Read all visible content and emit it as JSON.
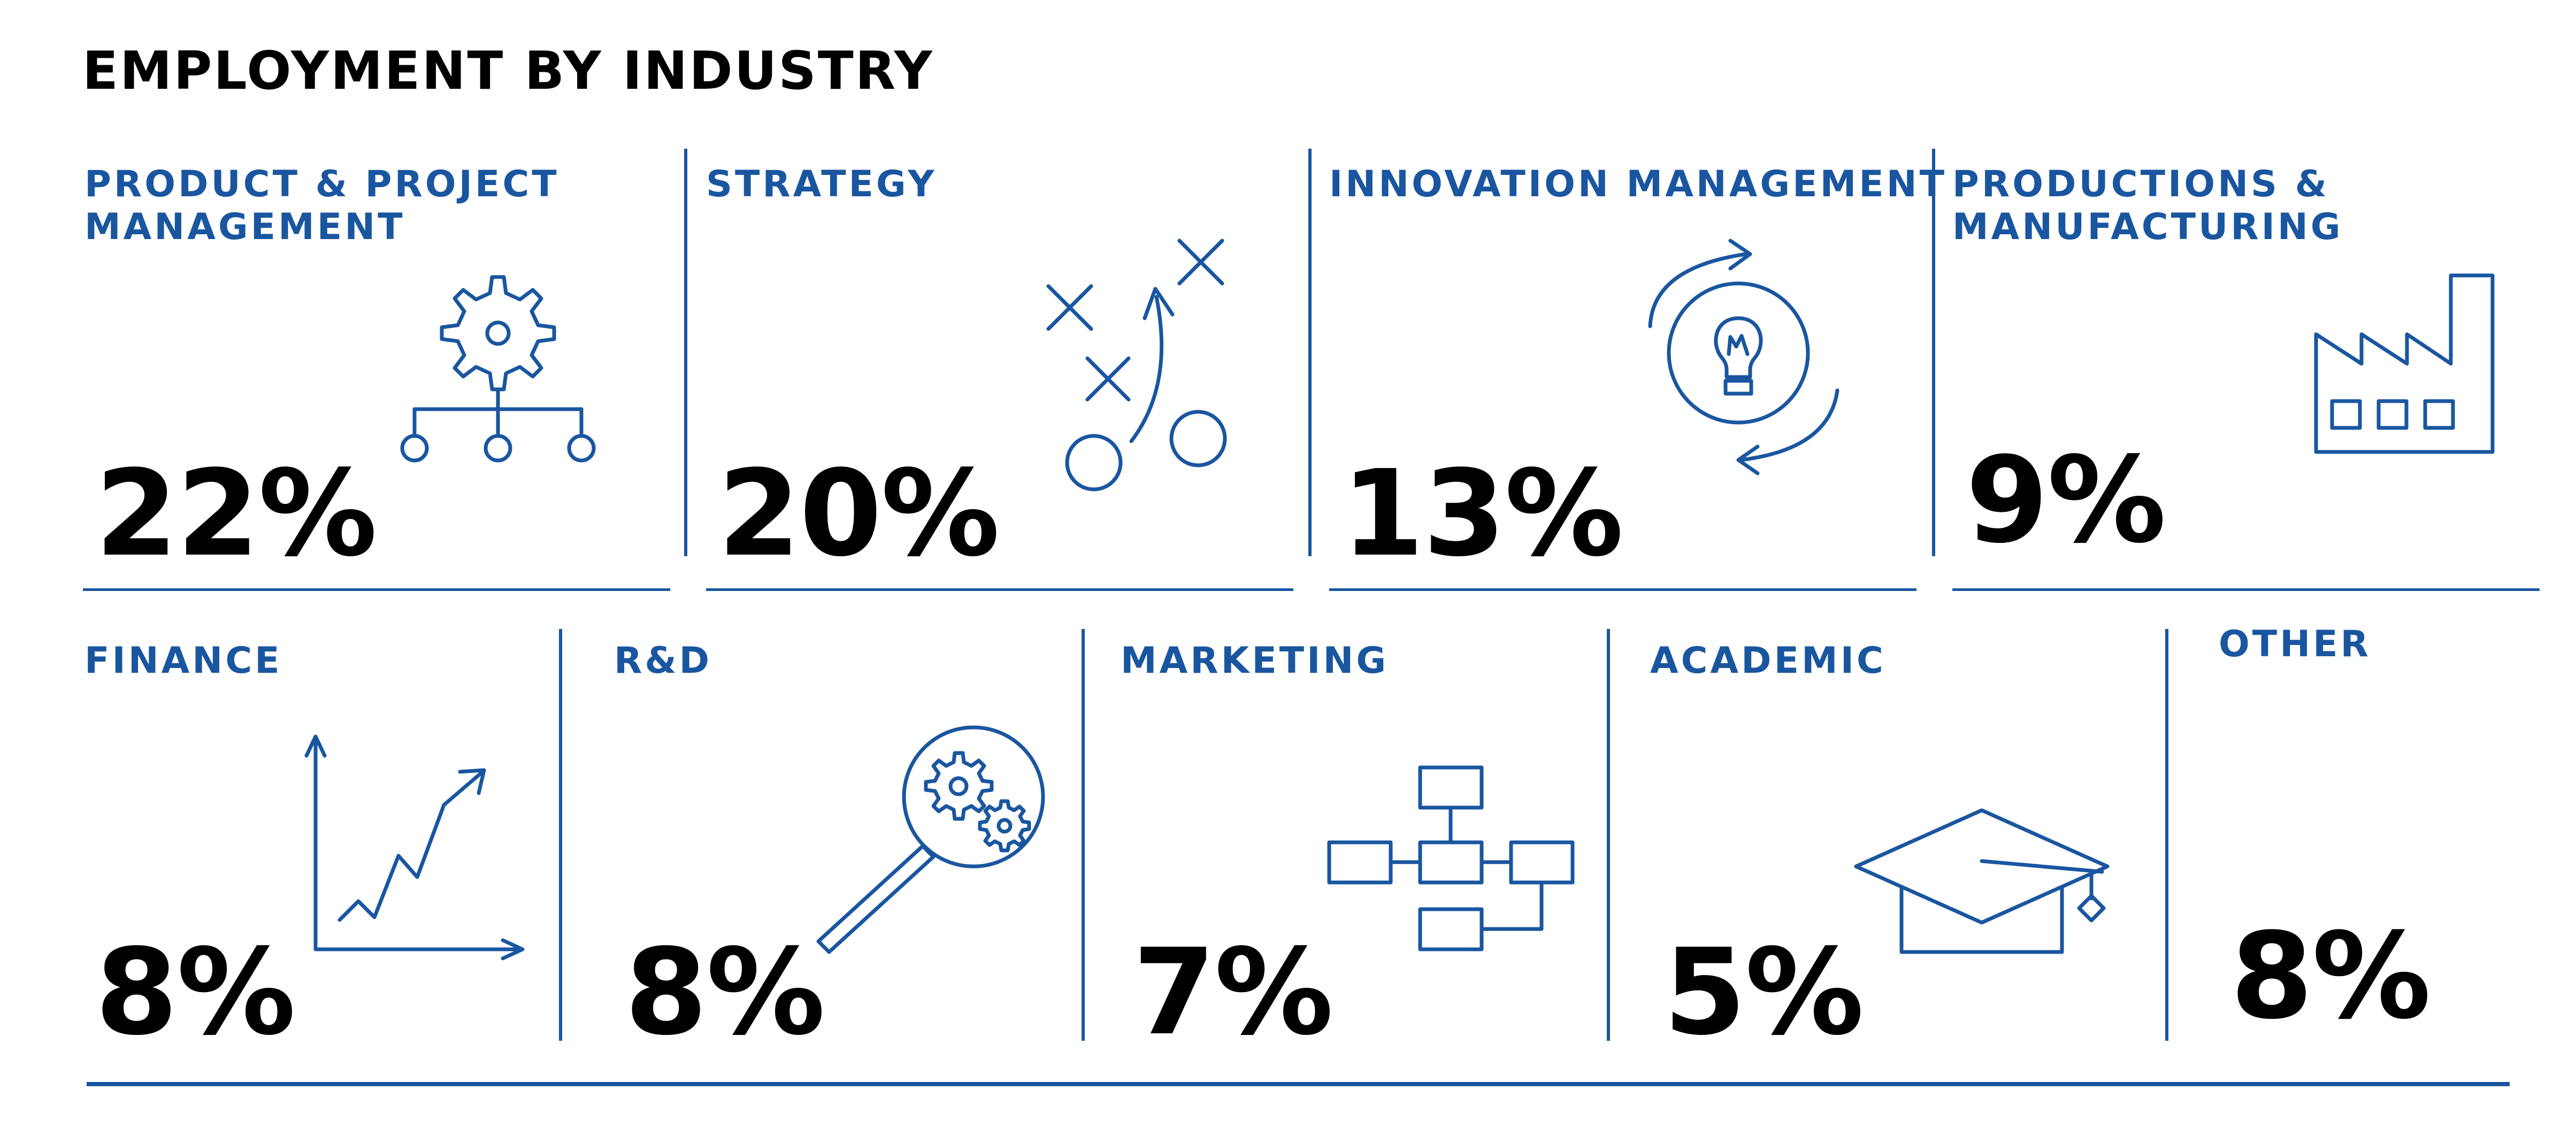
{
  "title": "EMPLOYMENT BY INDUSTRY",
  "colors": {
    "accent": "#1a56a0",
    "text": "#000000"
  },
  "industries": [
    {
      "label": "PRODUCT & PROJECT\nMANAGEMENT",
      "value": "22%",
      "icon": "gear-hierarchy-icon"
    },
    {
      "label": "STRATEGY",
      "value": "20%",
      "icon": "strategy-play-icon"
    },
    {
      "label": "INNOVATION MANAGEMENT",
      "value": "13%",
      "icon": "lightbulb-cycle-icon"
    },
    {
      "label": "PRODUCTIONS &\nMANUFACTURING",
      "value": "9%",
      "icon": "factory-icon"
    },
    {
      "label": "FINANCE",
      "value": "8%",
      "icon": "growth-chart-icon"
    },
    {
      "label": "R&D",
      "value": "8%",
      "icon": "magnifier-gears-icon"
    },
    {
      "label": "MARKETING",
      "value": "7%",
      "icon": "flowchart-icon"
    },
    {
      "label": "ACADEMIC",
      "value": "5%",
      "icon": "graduation-cap-icon"
    },
    {
      "label": "OTHER",
      "value": "8%",
      "icon": ""
    }
  ]
}
